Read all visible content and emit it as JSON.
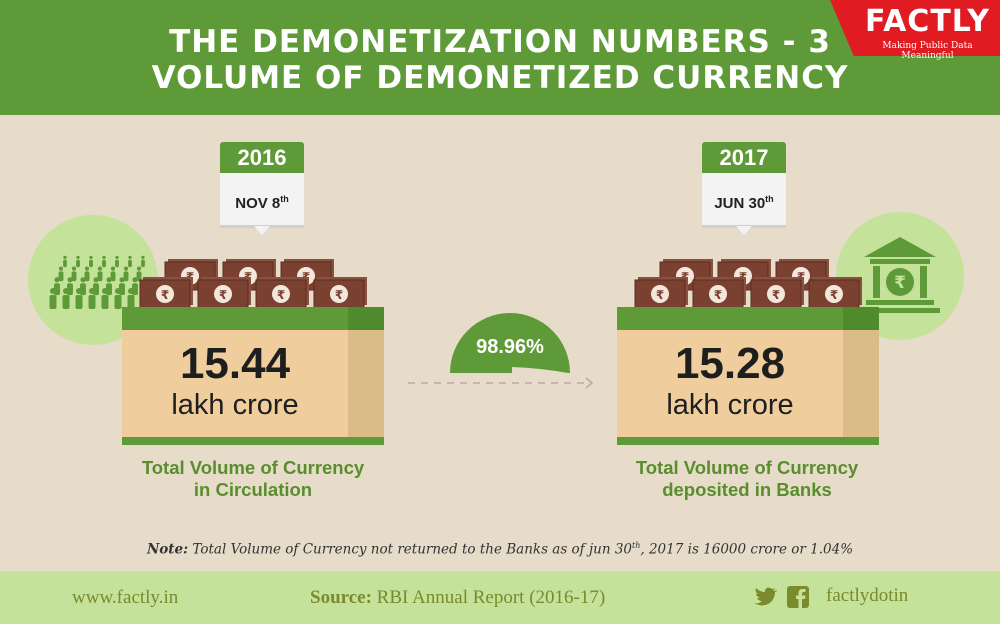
{
  "header": {
    "title_line1": "THE DEMONETIZATION NUMBERS - 3",
    "title_line2": "VOLUME OF DEMONETIZED CURRENCY"
  },
  "logo": {
    "name": "FACTLY",
    "tagline": "Making Public Data Meaningful"
  },
  "left": {
    "year": "2016",
    "date": "NOV 8",
    "date_sup": "th",
    "value": "15.44",
    "unit": "lakh crore",
    "caption_line1": "Total Volume of Currency",
    "caption_line2": "in Circulation",
    "icon": "people-crowd-icon"
  },
  "right": {
    "year": "2017",
    "date": "JUN 30",
    "date_sup": "th",
    "value": "15.28",
    "unit": "lakh crore",
    "caption_line1": "Total Volume of Currency",
    "caption_line2": "deposited in Banks",
    "icon": "bank-rupee-icon"
  },
  "gauge": {
    "label": "98.96%",
    "value_percent": 98.96
  },
  "note": {
    "label": "Note:",
    "text_before": " Total Volume of Currency not returned to the Banks as of jun 30",
    "sup": "th",
    "text_after": ", 2017 is 16000 crore or 1.04%"
  },
  "footer": {
    "website": "www.factly.in",
    "source_label": "Source:",
    "source_text": " RBI Annual Report (2016-17)",
    "social_handle": "factlydotin"
  },
  "colors": {
    "green": "#5e9a37",
    "light_green": "#c4e29a",
    "red": "#e11b22",
    "box": "#efcd9d",
    "money": "#7a4030"
  }
}
